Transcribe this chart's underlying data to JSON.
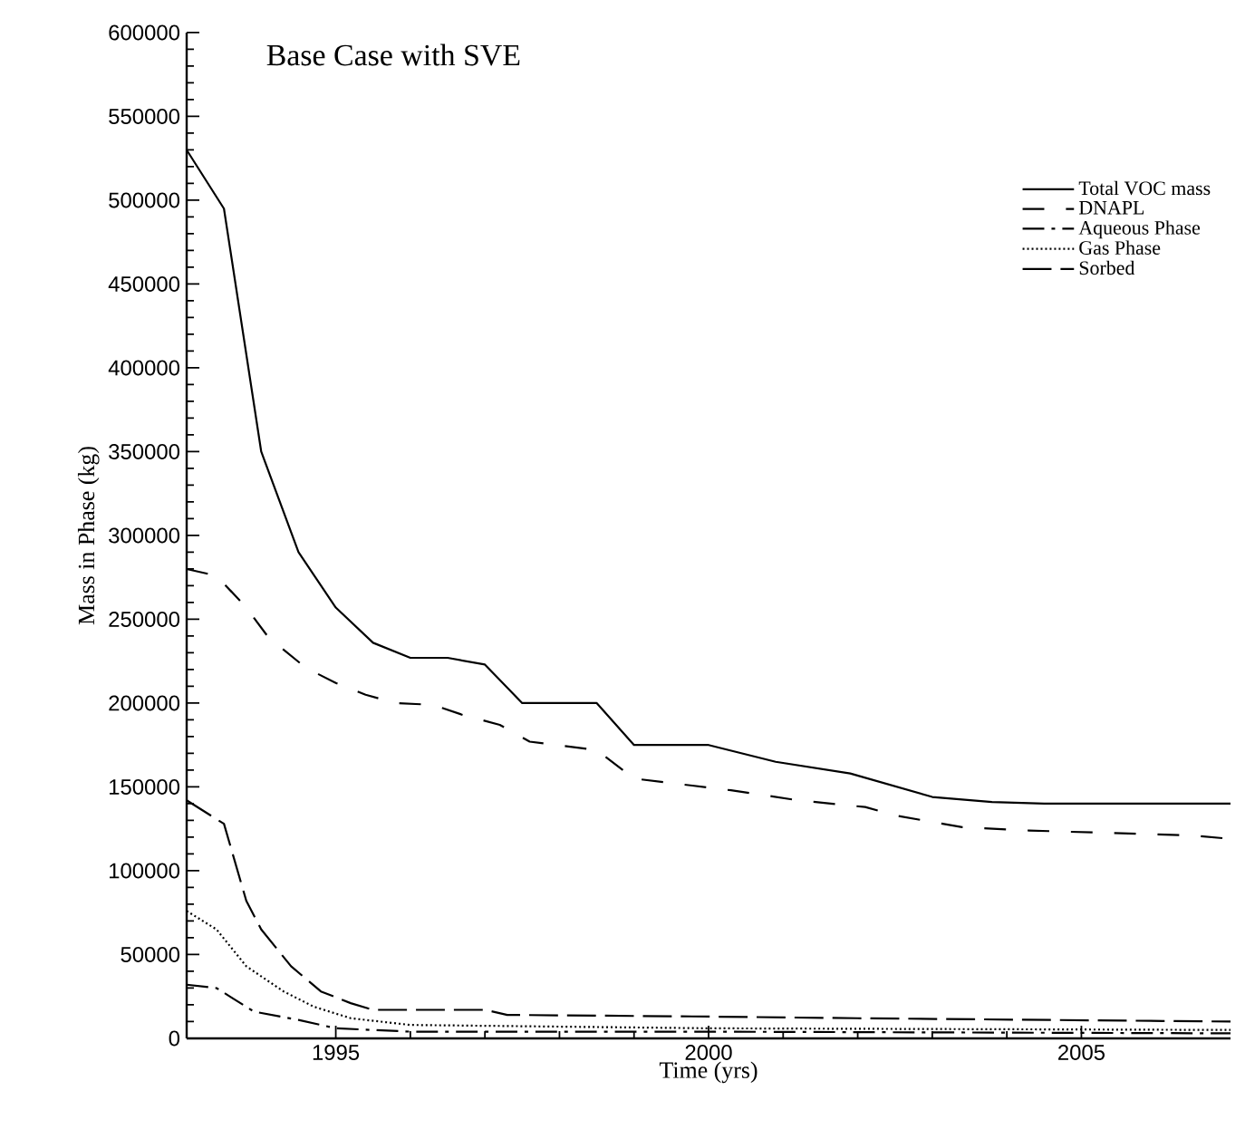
{
  "chart_data": {
    "type": "line",
    "title": "Base Case with SVE",
    "xlabel": "Time (yrs)",
    "ylabel": "Mass in Phase (kg)",
    "xlim": [
      1993,
      2007
    ],
    "ylim": [
      0,
      600000
    ],
    "xticks": [
      1995,
      2000,
      2005
    ],
    "yticks": [
      0,
      50000,
      100000,
      150000,
      200000,
      250000,
      300000,
      350000,
      400000,
      450000,
      500000,
      550000,
      600000
    ],
    "legend": "top right",
    "grid": false,
    "marker": "none",
    "series": [
      {
        "name": "Total VOC mass",
        "color": "#000000",
        "line_style": "solid",
        "x": [
          1993,
          1993.5,
          1994,
          1994.5,
          1995,
          1995.5,
          1996,
          1996.5,
          1997,
          1997.5,
          1998.5,
          1999,
          2000,
          2000.9,
          2001.9,
          2003,
          2003.8,
          2004.5,
          2007
        ],
        "values": [
          530000,
          495000,
          350000,
          290000,
          257000,
          236000,
          227000,
          227000,
          223000,
          200000,
          200000,
          175000,
          175000,
          165000,
          158000,
          144000,
          141000,
          140000,
          140000
        ]
      },
      {
        "name": "DNAPL",
        "color": "#000000",
        "line_style": "dashed",
        "x": [
          1993,
          1993.4,
          1993.8,
          1994.1,
          1994.6,
          1995,
          1995.4,
          1995.8,
          1996.3,
          1996.7,
          1997.2,
          1997.6,
          1998.5,
          1999,
          2000.3,
          2001.2,
          2002.1,
          2002.5,
          2003.4,
          2004.3,
          2006.5,
          2007
        ],
        "values": [
          280000,
          276000,
          257000,
          239000,
          221000,
          212000,
          205000,
          200000,
          199000,
          193000,
          187000,
          177000,
          172000,
          155000,
          148000,
          142000,
          138000,
          133000,
          126000,
          124000,
          121000,
          119000
        ]
      },
      {
        "name": "Aqueous Phase",
        "color": "#000000",
        "line_style": "dashdot",
        "x": [
          1993,
          1993.4,
          1993.9,
          1994.5,
          1995,
          1996,
          2000,
          2007
        ],
        "values": [
          32000,
          30000,
          16000,
          11000,
          6000,
          4000,
          4000,
          3000
        ]
      },
      {
        "name": "Gas Phase",
        "color": "#000000",
        "line_style": "dotted",
        "x": [
          1993,
          1993.4,
          1993.8,
          1994.3,
          1994.7,
          1995.2,
          1996,
          2000,
          2007
        ],
        "values": [
          76000,
          65000,
          43000,
          28000,
          19000,
          12000,
          8000,
          6000,
          5000
        ]
      },
      {
        "name": "Sorbed",
        "color": "#000000",
        "line_style": "longdash",
        "x": [
          1993,
          1993.5,
          1993.8,
          1994,
          1994.4,
          1994.8,
          1995.2,
          1995.5,
          1997,
          1997.3,
          2000,
          2002,
          2007
        ],
        "values": [
          142000,
          128000,
          82000,
          65000,
          43000,
          28000,
          21000,
          17000,
          17000,
          14000,
          13000,
          12000,
          10000
        ]
      }
    ]
  }
}
